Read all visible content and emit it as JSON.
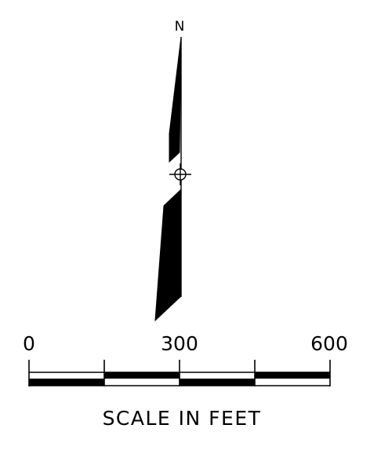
{
  "north_arrow": {
    "label": "N"
  },
  "scale_bar": {
    "labels": [
      "0",
      "300",
      "600"
    ],
    "caption": "SCALE IN FEET",
    "unit": "feet"
  },
  "colors": {
    "ink": "#000000",
    "paper": "#ffffff"
  }
}
